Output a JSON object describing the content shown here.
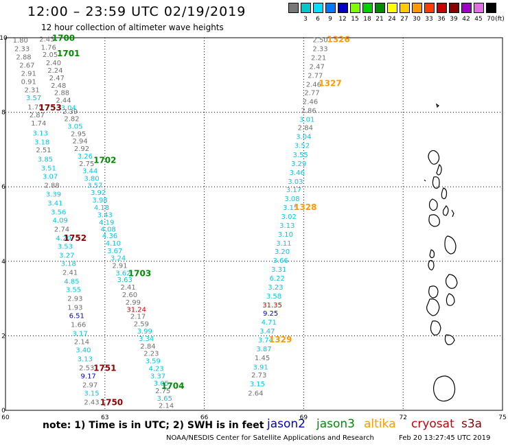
{
  "header": {
    "title": "12:00 – 23:59 UTC 02/19/2019",
    "subtitle": "12 hour collection of altimeter wave heights"
  },
  "scale_bar": {
    "unit": "(ft)",
    "steps": [
      {
        "label": "",
        "color": "#787878"
      },
      {
        "label": "3",
        "color": "#00c8c8"
      },
      {
        "label": "6",
        "color": "#00e1ff"
      },
      {
        "label": "9",
        "color": "#0078ff"
      },
      {
        "label": "12",
        "color": "#0000c8"
      },
      {
        "label": "15",
        "color": "#7fff00"
      },
      {
        "label": "18",
        "color": "#00d200"
      },
      {
        "label": "21",
        "color": "#008c00"
      },
      {
        "label": "24",
        "color": "#ffff00"
      },
      {
        "label": "27",
        "color": "#ffcc00"
      },
      {
        "label": "30",
        "color": "#ff9900"
      },
      {
        "label": "33",
        "color": "#ff3c00"
      },
      {
        "label": "36",
        "color": "#c80000"
      },
      {
        "label": "39",
        "color": "#8c0000"
      },
      {
        "label": "42",
        "color": "#a000c8"
      },
      {
        "label": "45",
        "color": "#e070e0"
      },
      {
        "label": "70",
        "color": "#000000"
      }
    ]
  },
  "map": {
    "lon_labels": [
      "60",
      "63",
      "66",
      "69",
      "72",
      "75"
    ],
    "lat_labels": [
      "0",
      "2",
      "4",
      "6",
      "8",
      "10"
    ],
    "colors": {
      "gray": "#6e6e6e",
      "cyan": "#00c8e6",
      "blue": "#0000c8",
      "red": "#c80000",
      "green": "#008c00",
      "orange": "#ff9900",
      "maroon": "#8c0000"
    },
    "wave_labels": [
      {
        "t": "1.80",
        "lon": 60.45,
        "lat": 9.87,
        "c": "gray"
      },
      {
        "t": "2.43",
        "lon": 61.25,
        "lat": 9.9,
        "c": "gray"
      },
      {
        "t": "1.76",
        "lon": 61.3,
        "lat": 9.68,
        "c": "gray"
      },
      {
        "t": "2.33",
        "lon": 60.5,
        "lat": 9.64,
        "c": "gray"
      },
      {
        "t": "2.05",
        "lon": 61.35,
        "lat": 9.48,
        "c": "gray"
      },
      {
        "t": "2.88",
        "lon": 60.55,
        "lat": 9.42,
        "c": "gray"
      },
      {
        "t": "2.40",
        "lon": 61.45,
        "lat": 9.26,
        "c": "gray"
      },
      {
        "t": "2.67",
        "lon": 60.65,
        "lat": 9.2,
        "c": "gray"
      },
      {
        "t": "2.24",
        "lon": 61.5,
        "lat": 9.06,
        "c": "gray"
      },
      {
        "t": "2.91",
        "lon": 60.7,
        "lat": 8.98,
        "c": "gray"
      },
      {
        "t": "2.47",
        "lon": 61.55,
        "lat": 8.86,
        "c": "gray"
      },
      {
        "t": "0.91",
        "lon": 60.7,
        "lat": 8.76,
        "c": "gray"
      },
      {
        "t": "2.48",
        "lon": 61.6,
        "lat": 8.66,
        "c": "gray"
      },
      {
        "t": "2.31",
        "lon": 60.8,
        "lat": 8.54,
        "c": "gray"
      },
      {
        "t": "2.88",
        "lon": 61.7,
        "lat": 8.46,
        "c": "gray"
      },
      {
        "t": "3.57",
        "lon": 60.85,
        "lat": 8.32,
        "c": "cyan"
      },
      {
        "t": "2.44",
        "lon": 61.75,
        "lat": 8.26,
        "c": "gray"
      },
      {
        "t": "3.04",
        "lon": 61.9,
        "lat": 8.06,
        "c": "cyan"
      },
      {
        "t": "1.75",
        "lon": 60.9,
        "lat": 8.08,
        "c": "gray"
      },
      {
        "t": "2.39",
        "lon": 61.95,
        "lat": 7.96,
        "c": "gray"
      },
      {
        "t": "2.87",
        "lon": 60.95,
        "lat": 7.86,
        "c": "gray"
      },
      {
        "t": "2.82",
        "lon": 62.0,
        "lat": 7.76,
        "c": "gray"
      },
      {
        "t": "1.74",
        "lon": 61.0,
        "lat": 7.64,
        "c": "gray"
      },
      {
        "t": "3.05",
        "lon": 62.1,
        "lat": 7.56,
        "c": "cyan"
      },
      {
        "t": "3.13",
        "lon": 61.05,
        "lat": 7.38,
        "c": "cyan"
      },
      {
        "t": "2.95",
        "lon": 62.2,
        "lat": 7.36,
        "c": "gray"
      },
      {
        "t": "3.18",
        "lon": 61.1,
        "lat": 7.14,
        "c": "cyan"
      },
      {
        "t": "2.94",
        "lon": 62.25,
        "lat": 7.16,
        "c": "gray"
      },
      {
        "t": "2.92",
        "lon": 62.3,
        "lat": 6.96,
        "c": "gray"
      },
      {
        "t": "2.51",
        "lon": 61.15,
        "lat": 6.92,
        "c": "gray"
      },
      {
        "t": "3.26",
        "lon": 62.4,
        "lat": 6.76,
        "c": "cyan"
      },
      {
        "t": "3.85",
        "lon": 61.2,
        "lat": 6.68,
        "c": "cyan"
      },
      {
        "t": "2.75",
        "lon": 62.45,
        "lat": 6.56,
        "c": "gray"
      },
      {
        "t": "3.51",
        "lon": 61.3,
        "lat": 6.44,
        "c": "cyan"
      },
      {
        "t": "3.44",
        "lon": 62.55,
        "lat": 6.36,
        "c": "cyan"
      },
      {
        "t": "3.07",
        "lon": 61.35,
        "lat": 6.22,
        "c": "cyan"
      },
      {
        "t": "3.80",
        "lon": 62.6,
        "lat": 6.16,
        "c": "cyan"
      },
      {
        "t": "2.88",
        "lon": 61.4,
        "lat": 5.98,
        "c": "gray"
      },
      {
        "t": "3.57",
        "lon": 62.7,
        "lat": 5.98,
        "c": "cyan"
      },
      {
        "t": "3.92",
        "lon": 62.8,
        "lat": 5.78,
        "c": "cyan"
      },
      {
        "t": "3.39",
        "lon": 61.45,
        "lat": 5.74,
        "c": "cyan"
      },
      {
        "t": "3.98",
        "lon": 62.85,
        "lat": 5.58,
        "c": "cyan"
      },
      {
        "t": "3.41",
        "lon": 61.5,
        "lat": 5.5,
        "c": "cyan"
      },
      {
        "t": "4.18",
        "lon": 62.9,
        "lat": 5.38,
        "c": "cyan"
      },
      {
        "t": "3.56",
        "lon": 61.6,
        "lat": 5.26,
        "c": "cyan"
      },
      {
        "t": "3.43",
        "lon": 63.0,
        "lat": 5.18,
        "c": "cyan"
      },
      {
        "t": "4.09",
        "lon": 61.65,
        "lat": 5.04,
        "c": "cyan"
      },
      {
        "t": "4.19",
        "lon": 63.05,
        "lat": 4.98,
        "c": "cyan"
      },
      {
        "t": "4.08",
        "lon": 63.1,
        "lat": 4.8,
        "c": "cyan"
      },
      {
        "t": "2.74",
        "lon": 61.7,
        "lat": 4.8,
        "c": "gray"
      },
      {
        "t": "4.36",
        "lon": 63.15,
        "lat": 4.62,
        "c": "cyan"
      },
      {
        "t": "4.20",
        "lon": 61.75,
        "lat": 4.56,
        "c": "cyan"
      },
      {
        "t": "4.10",
        "lon": 63.25,
        "lat": 4.42,
        "c": "cyan"
      },
      {
        "t": "3.53",
        "lon": 61.8,
        "lat": 4.34,
        "c": "cyan"
      },
      {
        "t": "3.67",
        "lon": 63.3,
        "lat": 4.22,
        "c": "cyan"
      },
      {
        "t": "3.27",
        "lon": 61.85,
        "lat": 4.1,
        "c": "cyan"
      },
      {
        "t": "3.24",
        "lon": 63.4,
        "lat": 4.02,
        "c": "cyan"
      },
      {
        "t": "3.18",
        "lon": 61.9,
        "lat": 3.88,
        "c": "cyan"
      },
      {
        "t": "2.91",
        "lon": 63.45,
        "lat": 3.82,
        "c": "gray"
      },
      {
        "t": "3.62",
        "lon": 63.55,
        "lat": 3.62,
        "c": "cyan"
      },
      {
        "t": "2.41",
        "lon": 61.95,
        "lat": 3.64,
        "c": "gray"
      },
      {
        "t": "3.63",
        "lon": 63.6,
        "lat": 3.44,
        "c": "cyan"
      },
      {
        "t": "4.85",
        "lon": 62.0,
        "lat": 3.4,
        "c": "cyan"
      },
      {
        "t": "2.41",
        "lon": 63.7,
        "lat": 3.24,
        "c": "gray"
      },
      {
        "t": "3.55",
        "lon": 62.05,
        "lat": 3.18,
        "c": "cyan"
      },
      {
        "t": "2.60",
        "lon": 63.75,
        "lat": 3.04,
        "c": "gray"
      },
      {
        "t": "2.93",
        "lon": 62.1,
        "lat": 2.94,
        "c": "gray"
      },
      {
        "t": "2.99",
        "lon": 63.85,
        "lat": 2.84,
        "c": "gray"
      },
      {
        "t": "1.93",
        "lon": 62.1,
        "lat": 2.7,
        "c": "gray"
      },
      {
        "t": "31.24",
        "lon": 63.95,
        "lat": 2.64,
        "c": "red"
      },
      {
        "t": "6.51",
        "lon": 62.15,
        "lat": 2.48,
        "c": "blue"
      },
      {
        "t": "2.17",
        "lon": 64.0,
        "lat": 2.46,
        "c": "gray"
      },
      {
        "t": "1.66",
        "lon": 62.2,
        "lat": 2.24,
        "c": "gray"
      },
      {
        "t": "2.59",
        "lon": 64.1,
        "lat": 2.26,
        "c": "gray"
      },
      {
        "t": "3.99",
        "lon": 64.2,
        "lat": 2.06,
        "c": "cyan"
      },
      {
        "t": "3.17",
        "lon": 62.25,
        "lat": 2.0,
        "c": "cyan"
      },
      {
        "t": "3.34",
        "lon": 64.25,
        "lat": 1.86,
        "c": "cyan"
      },
      {
        "t": "2.14",
        "lon": 62.3,
        "lat": 1.78,
        "c": "gray"
      },
      {
        "t": "2.84",
        "lon": 64.3,
        "lat": 1.66,
        "c": "gray"
      },
      {
        "t": "3.40",
        "lon": 62.35,
        "lat": 1.56,
        "c": "cyan"
      },
      {
        "t": "2.23",
        "lon": 64.4,
        "lat": 1.46,
        "c": "gray"
      },
      {
        "t": "3.13",
        "lon": 62.4,
        "lat": 1.32,
        "c": "cyan"
      },
      {
        "t": "3.59",
        "lon": 64.45,
        "lat": 1.26,
        "c": "cyan"
      },
      {
        "t": "2.53",
        "lon": 62.45,
        "lat": 1.08,
        "c": "gray"
      },
      {
        "t": "4.23",
        "lon": 64.55,
        "lat": 1.06,
        "c": "cyan"
      },
      {
        "t": "9.17",
        "lon": 62.5,
        "lat": 0.86,
        "c": "blue"
      },
      {
        "t": "3.37",
        "lon": 64.6,
        "lat": 0.86,
        "c": "cyan"
      },
      {
        "t": "3.05",
        "lon": 64.7,
        "lat": 0.66,
        "c": "cyan"
      },
      {
        "t": "2.97",
        "lon": 62.55,
        "lat": 0.62,
        "c": "gray"
      },
      {
        "t": "2.75",
        "lon": 64.75,
        "lat": 0.46,
        "c": "gray"
      },
      {
        "t": "3.15",
        "lon": 62.6,
        "lat": 0.4,
        "c": "cyan"
      },
      {
        "t": "3.65",
        "lon": 64.8,
        "lat": 0.26,
        "c": "cyan"
      },
      {
        "t": "2.43",
        "lon": 62.6,
        "lat": 0.16,
        "c": "gray"
      },
      {
        "t": "2.14",
        "lon": 64.85,
        "lat": 0.06,
        "c": "gray"
      },
      {
        "t": "2.50",
        "lon": 69.5,
        "lat": 9.88,
        "c": "gray"
      },
      {
        "t": "2.33",
        "lon": 69.5,
        "lat": 9.64,
        "c": "gray"
      },
      {
        "t": "2.21",
        "lon": 69.45,
        "lat": 9.4,
        "c": "gray"
      },
      {
        "t": "2.47",
        "lon": 69.4,
        "lat": 9.16,
        "c": "gray"
      },
      {
        "t": "2.77",
        "lon": 69.35,
        "lat": 8.92,
        "c": "gray"
      },
      {
        "t": "2.46",
        "lon": 69.3,
        "lat": 8.68,
        "c": "gray"
      },
      {
        "t": "2.77",
        "lon": 69.25,
        "lat": 8.46,
        "c": "gray"
      },
      {
        "t": "2.46",
        "lon": 69.2,
        "lat": 8.22,
        "c": "gray"
      },
      {
        "t": "2.86",
        "lon": 69.15,
        "lat": 7.98,
        "c": "gray"
      },
      {
        "t": "3.01",
        "lon": 69.1,
        "lat": 7.74,
        "c": "cyan"
      },
      {
        "t": "2.84",
        "lon": 69.05,
        "lat": 7.52,
        "c": "gray"
      },
      {
        "t": "3.04",
        "lon": 69.0,
        "lat": 7.28,
        "c": "cyan"
      },
      {
        "t": "3.52",
        "lon": 68.95,
        "lat": 7.04,
        "c": "cyan"
      },
      {
        "t": "3.55",
        "lon": 68.9,
        "lat": 6.8,
        "c": "cyan"
      },
      {
        "t": "3.29",
        "lon": 68.85,
        "lat": 6.56,
        "c": "cyan"
      },
      {
        "t": "3.46",
        "lon": 68.8,
        "lat": 6.32,
        "c": "cyan"
      },
      {
        "t": "3.03",
        "lon": 68.75,
        "lat": 6.08,
        "c": "cyan"
      },
      {
        "t": "3.17",
        "lon": 68.7,
        "lat": 5.86,
        "c": "cyan"
      },
      {
        "t": "3.08",
        "lon": 68.65,
        "lat": 5.62,
        "c": "cyan"
      },
      {
        "t": "3.15",
        "lon": 68.6,
        "lat": 5.38,
        "c": "cyan"
      },
      {
        "t": "3.02",
        "lon": 68.55,
        "lat": 5.14,
        "c": "cyan"
      },
      {
        "t": "3.13",
        "lon": 68.5,
        "lat": 4.9,
        "c": "cyan"
      },
      {
        "t": "3.10",
        "lon": 68.45,
        "lat": 4.66,
        "c": "cyan"
      },
      {
        "t": "3.11",
        "lon": 68.4,
        "lat": 4.42,
        "c": "cyan"
      },
      {
        "t": "3.20",
        "lon": 68.35,
        "lat": 4.2,
        "c": "cyan"
      },
      {
        "t": "3.66",
        "lon": 68.3,
        "lat": 3.96,
        "c": "cyan"
      },
      {
        "t": "3.31",
        "lon": 68.25,
        "lat": 3.72,
        "c": "cyan"
      },
      {
        "t": "6.22",
        "lon": 68.2,
        "lat": 3.48,
        "c": "cyan"
      },
      {
        "t": "3.23",
        "lon": 68.15,
        "lat": 3.24,
        "c": "cyan"
      },
      {
        "t": "3.58",
        "lon": 68.1,
        "lat": 3.0,
        "c": "cyan"
      },
      {
        "t": "31.35",
        "lon": 68.05,
        "lat": 2.76,
        "c": "red"
      },
      {
        "t": "9.25",
        "lon": 68.0,
        "lat": 2.54,
        "c": "blue"
      },
      {
        "t": "4.71",
        "lon": 67.95,
        "lat": 2.3,
        "c": "cyan"
      },
      {
        "t": "3.47",
        "lon": 67.9,
        "lat": 2.06,
        "c": "cyan"
      },
      {
        "t": "3.74",
        "lon": 67.85,
        "lat": 1.82,
        "c": "cyan"
      },
      {
        "t": "3.87",
        "lon": 67.8,
        "lat": 1.58,
        "c": "cyan"
      },
      {
        "t": "1.45",
        "lon": 67.75,
        "lat": 1.34,
        "c": "gray"
      },
      {
        "t": "3.91",
        "lon": 67.7,
        "lat": 1.1,
        "c": "cyan"
      },
      {
        "t": "2.73",
        "lon": 67.65,
        "lat": 0.88,
        "c": "gray"
      },
      {
        "t": "3.15",
        "lon": 67.6,
        "lat": 0.64,
        "c": "cyan"
      },
      {
        "t": "2.64",
        "lon": 67.55,
        "lat": 0.4,
        "c": "gray"
      }
    ],
    "time_labels": [
      {
        "t": "1700",
        "lon": 61.75,
        "lat": 9.92,
        "c": "green"
      },
      {
        "t": "1701",
        "lon": 61.9,
        "lat": 9.5,
        "c": "green"
      },
      {
        "t": "1753",
        "lon": 61.35,
        "lat": 8.05,
        "c": "maroon"
      },
      {
        "t": "1702",
        "lon": 63.0,
        "lat": 6.64,
        "c": "green"
      },
      {
        "t": "1752",
        "lon": 62.1,
        "lat": 4.55,
        "c": "maroon"
      },
      {
        "t": "1703",
        "lon": 64.05,
        "lat": 3.6,
        "c": "green"
      },
      {
        "t": "1751",
        "lon": 63.0,
        "lat": 1.06,
        "c": "maroon"
      },
      {
        "t": "1704",
        "lon": 65.05,
        "lat": 0.58,
        "c": "green"
      },
      {
        "t": "1750",
        "lon": 63.2,
        "lat": 0.14,
        "c": "maroon"
      },
      {
        "t": "1326",
        "lon": 70.05,
        "lat": 9.88,
        "c": "orange"
      },
      {
        "t": "1327",
        "lon": 69.8,
        "lat": 8.7,
        "c": "orange"
      },
      {
        "t": "1328",
        "lon": 69.05,
        "lat": 5.38,
        "c": "orange"
      },
      {
        "t": "1329",
        "lon": 68.3,
        "lat": 1.82,
        "c": "orange"
      }
    ]
  },
  "footer": {
    "note": "note: 1) Time is in UTC; 2) SWH is in feet",
    "legend": [
      {
        "name": "jason2",
        "color": "#0000c8"
      },
      {
        "name": "jason3",
        "color": "#008c00"
      },
      {
        "name": "altika",
        "color": "#ff9900"
      },
      {
        "name": "cryosat",
        "color": "#c80000"
      },
      {
        "name": "s3a",
        "color": "#8c0000"
      }
    ],
    "credit": "NOAA/NESDIS Center for Satellite Applications and Research",
    "timestamp": "Feb 20 13:27:45 UTC 2019"
  }
}
